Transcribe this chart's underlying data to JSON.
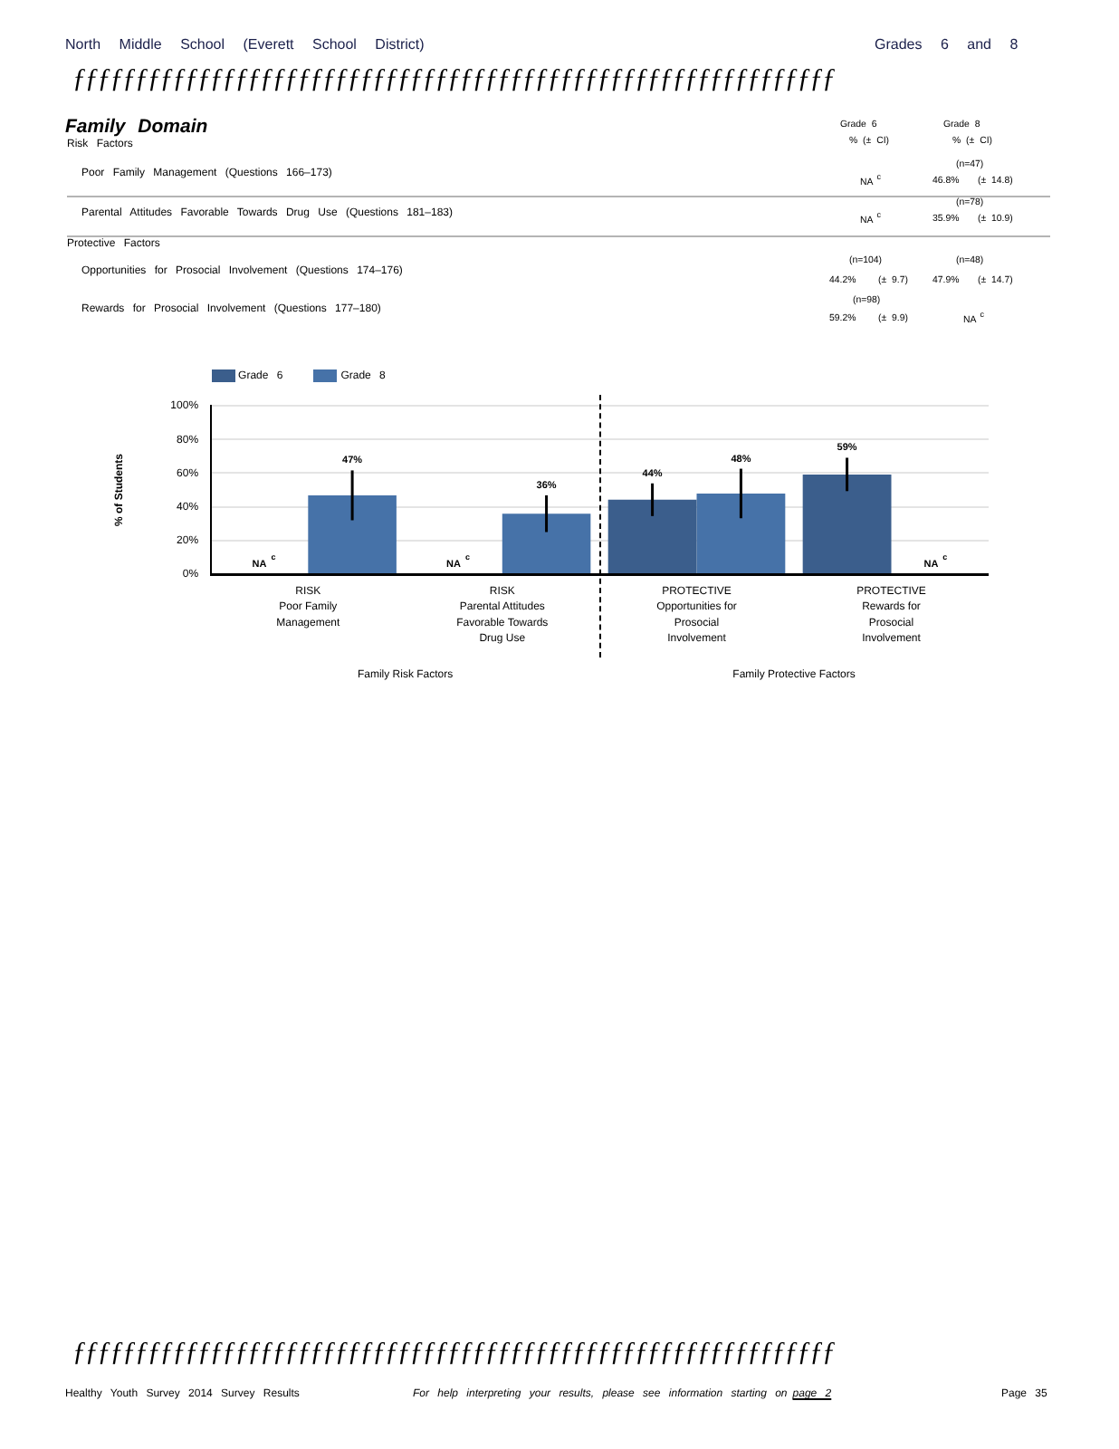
{
  "chart_data": [
    {
      "type": "other",
      "title": "Family Domain",
      "annotations": [
        "North Middle School (Everett School District)",
        "Grades 6 and 8",
        "ƒƒƒƒƒƒƒƒƒƒƒƒƒƒƒƒƒƒƒƒƒƒƒƒƒƒƒƒƒƒƒƒƒƒƒƒƒƒƒƒƒƒƒƒƒƒƒƒƒƒƒƒƒƒƒƒƒƒƒƒƒ",
        "Risk Factors",
        "Grade 6",
        "% (± CI)",
        "Grade 8",
        "% (± CI)",
        "Poor Family Management (Questions 166–173)",
        "NA$^{c}$",
        "(n=47)",
        "46.8%",
        "(± 14.8)",
        "Parental Attitudes Favorable Towards Drug Use (Questions 181–183)",
        "NA$^{c}$",
        "(n=78)",
        "35.9%",
        "(± 10.9)",
        "Protective Factors",
        "Opportunities for Prosocial Involvement (Questions 174–176)",
        "(n=104)",
        "44.2%",
        "(± 9.7)",
        "(n=48)",
        "47.9%",
        "(± 14.7)",
        "Rewards for Prosocial Involvement (Questions 177–180)",
        "(n=98)",
        "59.2%",
        "(± 9.9)",
        "NA$^{c}$",
        "ƒƒƒƒƒƒƒƒƒƒƒƒƒƒƒƒƒƒƒƒƒƒƒƒƒƒƒƒƒƒƒƒƒƒƒƒƒƒƒƒƒƒƒƒƒƒƒƒƒƒƒƒƒƒƒƒƒƒƒƒƒ",
        "Healthy Youth Survey 2014 Survey Results",
        "For help interpreting your results, please see information starting on",
        "page 2",
        "Page 35"
      ]
    },
    {
      "type": "bar",
      "categories": [
        "RISK\nPoor Family\nManagement",
        "RISK\nParental Attitudes\nFavorable Towards\nDrug Use"
      ],
      "xlabel": "Family Risk Factors",
      "ylabel": "% of Students",
      "ylim": [
        0,
        100
      ],
      "yticks": [
        {
          "value": 0,
          "label": "0%"
        },
        {
          "value": 20,
          "label": "20%"
        },
        {
          "value": 40,
          "label": "40%"
        },
        {
          "value": 60,
          "label": "60%"
        },
        {
          "value": 80,
          "label": "80%"
        },
        {
          "value": 100,
          "label": "100%"
        }
      ],
      "grid": "y",
      "legend": "top left",
      "series": [
        {
          "name": "Grade 6",
          "color": "#3b5e8c",
          "values": [
            null,
            null
          ],
          "errors": [
            null,
            null
          ],
          "value_labels": [
            "NA$^{c}$",
            "NA$^{c}$"
          ]
        },
        {
          "name": "Grade 8",
          "color": "#4672a8",
          "values": [
            46.8,
            35.9
          ],
          "errors": [
            14.8,
            10.9
          ],
          "value_labels": [
            "47%",
            "36%"
          ]
        }
      ]
    },
    {
      "type": "bar",
      "categories": [
        "PROTECTIVE\nOpportunities for\nProsocial\nInvolvement",
        "PROTECTIVE\nRewards for\nProsocial\nInvolvement"
      ],
      "xlabel": "Family Protective Factors",
      "ylim": [
        0,
        100
      ],
      "yticks": [
        0,
        20,
        40,
        60,
        80,
        100
      ],
      "tick_labels": "x",
      "grid": "y",
      "series": [
        {
          "color": "#3b5e8c",
          "values": [
            44.2,
            59.2
          ],
          "errors": [
            9.7,
            9.9
          ],
          "value_labels": [
            "44%",
            "59%"
          ]
        },
        {
          "color": "#4672a8",
          "values": [
            47.9,
            null
          ],
          "errors": [
            14.7,
            null
          ],
          "value_labels": [
            "48%",
            "NA$^{c}$"
          ]
        }
      ]
    }
  ]
}
